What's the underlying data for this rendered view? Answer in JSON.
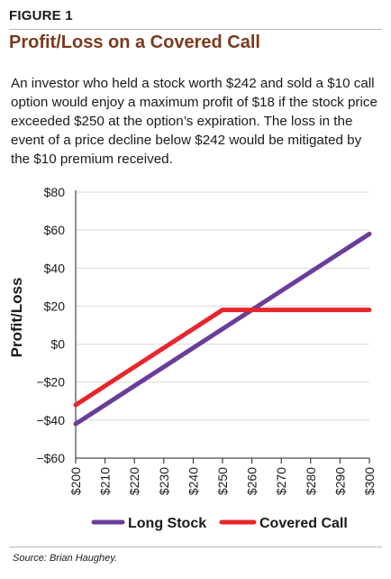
{
  "figure_label": "FIGURE 1",
  "title": "Profit/Loss on a Covered Call",
  "caption": "An investor who held a stock worth $242 and sold a $10 call option would enjoy a maximum profit of $18 if the stock price exceeded $250 at the option’s expiration. The loss in the event of a price decline below $242 would be mitigated by the $10 premium received.",
  "source": "Source: Brian Haughey.",
  "colors": {
    "long_stock": "#6a3d9a",
    "covered_call": "#e8262a",
    "grid": "#d9d9d9",
    "axis": "#222222"
  },
  "chart_data": {
    "type": "line",
    "ylabel": "Profit/Loss",
    "xlabel": "",
    "xlim": [
      200,
      300
    ],
    "ylim": [
      -60,
      80
    ],
    "x_ticks": [
      200,
      210,
      220,
      230,
      240,
      250,
      260,
      270,
      280,
      290,
      300
    ],
    "x_tick_labels": [
      "$200",
      "$210",
      "$220",
      "$230",
      "$240",
      "$250",
      "$260",
      "$270",
      "$280",
      "$290",
      "$300"
    ],
    "y_ticks": [
      80,
      60,
      40,
      20,
      0,
      -20,
      -40,
      -60
    ],
    "y_tick_labels": [
      "$80",
      "$60",
      "$40",
      "$20",
      "$0",
      "−$20",
      "−$40",
      "−$60"
    ],
    "grid": true,
    "legend_position": "bottom",
    "series": [
      {
        "name": "Long Stock",
        "x": [
          200,
          300
        ],
        "y": [
          -42,
          58
        ]
      },
      {
        "name": "Covered Call",
        "x": [
          200,
          250,
          300
        ],
        "y": [
          -32,
          18,
          18
        ]
      }
    ]
  }
}
